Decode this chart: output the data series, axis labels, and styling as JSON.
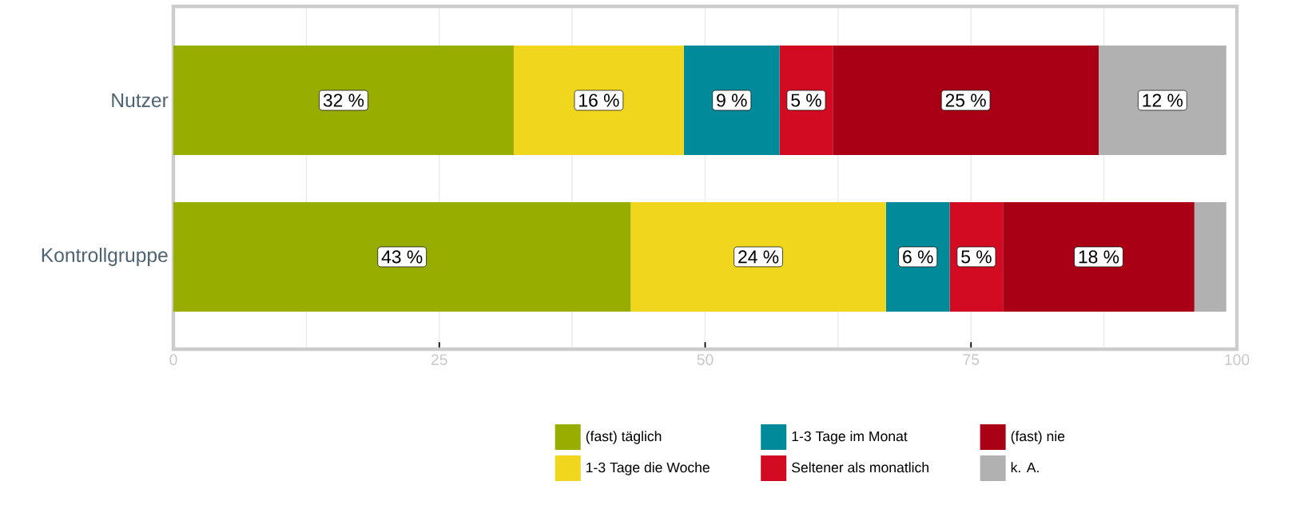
{
  "chart_data": {
    "type": "bar",
    "orientation": "horizontal",
    "stacked": true,
    "categories": [
      "Nutzer",
      "Kontrollgruppe"
    ],
    "series": [
      {
        "name": "(fast) täglich",
        "color": "#97ad00",
        "values": [
          32,
          43
        ],
        "value_labels": [
          "32 %",
          "43 %"
        ]
      },
      {
        "name": "1-3 Tage die Woche",
        "color": "#f0d71e",
        "values": [
          16,
          24
        ],
        "value_labels": [
          "16 %",
          "24 %"
        ]
      },
      {
        "name": "1-3 Tage im Monat",
        "color": "#008a9a",
        "values": [
          9,
          6
        ],
        "value_labels": [
          "9 %",
          "6 %"
        ]
      },
      {
        "name": "Seltener als monatlich",
        "color": "#d20a22",
        "values": [
          5,
          5
        ],
        "value_labels": [
          "5 %",
          "5 %"
        ]
      },
      {
        "name": "(fast) nie",
        "color": "#a90016",
        "values": [
          25,
          18
        ],
        "value_labels": [
          "25 %",
          "18 %"
        ]
      },
      {
        "name": "k. A.",
        "color": "#b1b1b1",
        "values": [
          12,
          3
        ],
        "value_labels": [
          "12 %",
          null
        ]
      }
    ],
    "xlim": [
      0,
      100
    ],
    "xticks": [
      0,
      25,
      50,
      75,
      100
    ],
    "grid": "x",
    "legend": "bottom"
  }
}
